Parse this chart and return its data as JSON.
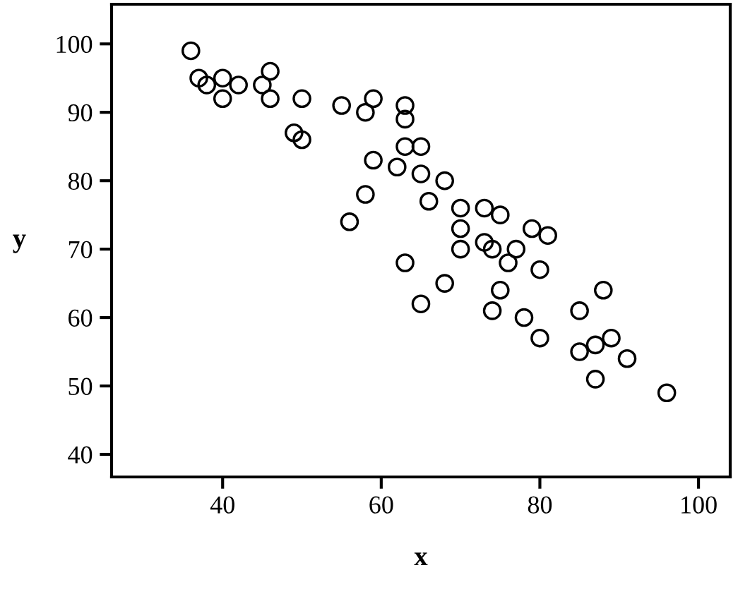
{
  "chart_data": {
    "type": "scatter",
    "xlabel": "x",
    "ylabel": "y",
    "xlim": [
      26,
      104
    ],
    "ylim": [
      36.7,
      105.8
    ],
    "xticks": [
      40,
      60,
      80,
      100
    ],
    "yticks": [
      40,
      50,
      60,
      70,
      80,
      90,
      100
    ],
    "marker": "circle",
    "grid": false,
    "series": [
      {
        "color": "#000000",
        "x": [
          36,
          37,
          38,
          40,
          40,
          42,
          45,
          46,
          46,
          49,
          50,
          50,
          55,
          58,
          59,
          63,
          63,
          63,
          65,
          65,
          62,
          59,
          58,
          56,
          66,
          68,
          70,
          70,
          70,
          73,
          73,
          74,
          75,
          76,
          77,
          79,
          81,
          80,
          75,
          74,
          78,
          80,
          63,
          68,
          65,
          85,
          88,
          85,
          87,
          89,
          91,
          87,
          96
        ],
        "values": [
          99,
          95,
          94,
          95,
          92,
          94,
          94,
          96,
          92,
          87,
          86,
          92,
          91,
          90,
          92,
          91,
          89,
          85,
          85,
          81,
          82,
          83,
          78,
          74,
          77,
          80,
          76,
          73,
          70,
          76,
          71,
          70,
          75,
          68,
          70,
          73,
          72,
          67,
          64,
          61,
          60,
          57,
          68,
          65,
          62,
          61,
          64,
          55,
          56,
          57,
          54,
          51,
          49
        ]
      }
    ]
  }
}
